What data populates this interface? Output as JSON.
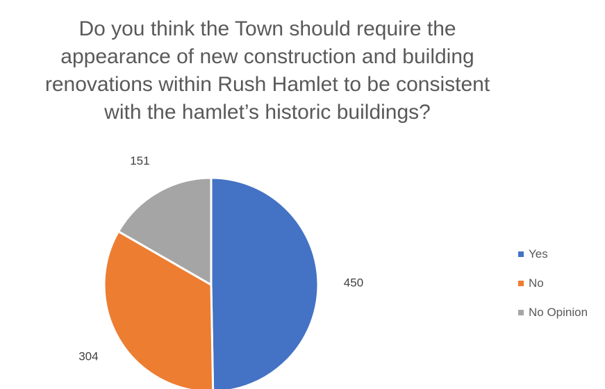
{
  "chart_data": {
    "type": "pie",
    "title_lines": [
      "Do you think the Town should require the",
      "appearance of new construction and building",
      "renovations within Rush Hamlet to be consistent",
      "with the hamlet’s historic buildings?"
    ],
    "categories": [
      "Yes",
      "No",
      "No Opinion"
    ],
    "values": [
      450,
      304,
      151
    ],
    "colors": [
      "#4472C4",
      "#ED7D31",
      "#A5A5A5"
    ],
    "legend_position": "right",
    "data_labels": true
  }
}
